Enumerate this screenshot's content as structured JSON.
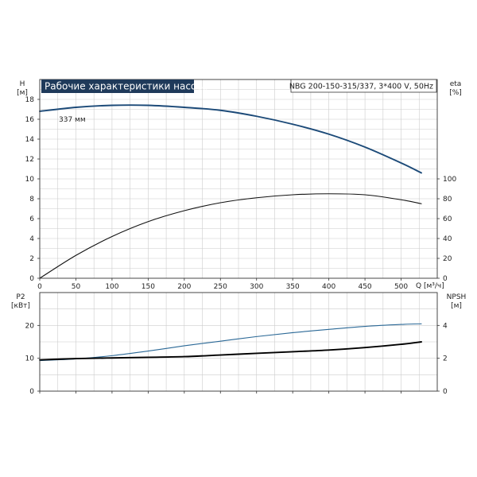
{
  "title": "Рабочие характеристики насоса",
  "model_label": "NBG 200-150-315/337, 3*400 V, 50Hz",
  "colors": {
    "title_bg": "#1f3a5a",
    "head_curve": "#1c4a78",
    "eta_curve": "#111111",
    "p2_curve": "#2a6896",
    "npsh_curve": "#000000",
    "grid": "#cccccc",
    "axis": "#333333"
  },
  "chart_data": [
    {
      "id": "top",
      "type": "line",
      "xlabel": "Q [м³/ч]",
      "xlim": [
        0,
        550
      ],
      "x_ticks": [
        0,
        50,
        100,
        150,
        200,
        250,
        300,
        350,
        400,
        450,
        500
      ],
      "ylabel_left": "H",
      "ylabel_left_unit": "[м]",
      "ylim_left": [
        0,
        20
      ],
      "y_ticks_left": [
        0,
        2,
        4,
        6,
        8,
        10,
        12,
        14,
        16,
        18
      ],
      "ylabel_right": "eta",
      "ylabel_right_unit": "[%]",
      "ylim_right": [
        0,
        200
      ],
      "y_ticks_right": [
        0,
        20,
        40,
        60,
        80,
        100
      ],
      "grid": true,
      "annotation": "337 мм",
      "series": [
        {
          "key": "head",
          "axis": "left",
          "x": [
            0,
            50,
            100,
            150,
            200,
            250,
            300,
            350,
            400,
            450,
            500,
            528
          ],
          "y": [
            16.8,
            17.2,
            17.4,
            17.4,
            17.2,
            16.9,
            16.3,
            15.5,
            14.5,
            13.2,
            11.6,
            10.6
          ]
        },
        {
          "key": "eta",
          "axis": "right",
          "x": [
            0,
            50,
            100,
            150,
            200,
            250,
            300,
            350,
            400,
            450,
            500,
            528
          ],
          "y": [
            0,
            23,
            42,
            57,
            68,
            76,
            81,
            84,
            85,
            84,
            79,
            75
          ]
        }
      ]
    },
    {
      "id": "bottom",
      "type": "line",
      "xlim": [
        0,
        550
      ],
      "x_ticks": [
        0,
        50,
        100,
        150,
        200,
        250,
        300,
        350,
        400,
        450,
        500
      ],
      "ylabel_left": "P2",
      "ylabel_left_unit": "[кВт]",
      "ylim_left": [
        0,
        30
      ],
      "y_ticks_left": [
        0,
        10,
        20
      ],
      "ylabel_right": "NPSH",
      "ylabel_right_unit": "[м]",
      "ylim_right": [
        0,
        6
      ],
      "y_ticks_right": [
        0,
        2,
        4
      ],
      "grid": true,
      "series": [
        {
          "key": "p2",
          "axis": "left",
          "x": [
            0,
            50,
            100,
            150,
            200,
            250,
            300,
            350,
            400,
            450,
            500,
            528
          ],
          "y": [
            9.3,
            9.8,
            10.8,
            12.2,
            13.8,
            15.2,
            16.6,
            17.8,
            18.8,
            19.7,
            20.3,
            20.5
          ]
        },
        {
          "key": "npsh",
          "axis": "right",
          "x": [
            0,
            50,
            100,
            150,
            200,
            250,
            300,
            350,
            400,
            450,
            500,
            528
          ],
          "y": [
            1.9,
            1.98,
            2.02,
            2.06,
            2.1,
            2.2,
            2.3,
            2.4,
            2.5,
            2.65,
            2.85,
            3.0
          ]
        }
      ]
    }
  ]
}
